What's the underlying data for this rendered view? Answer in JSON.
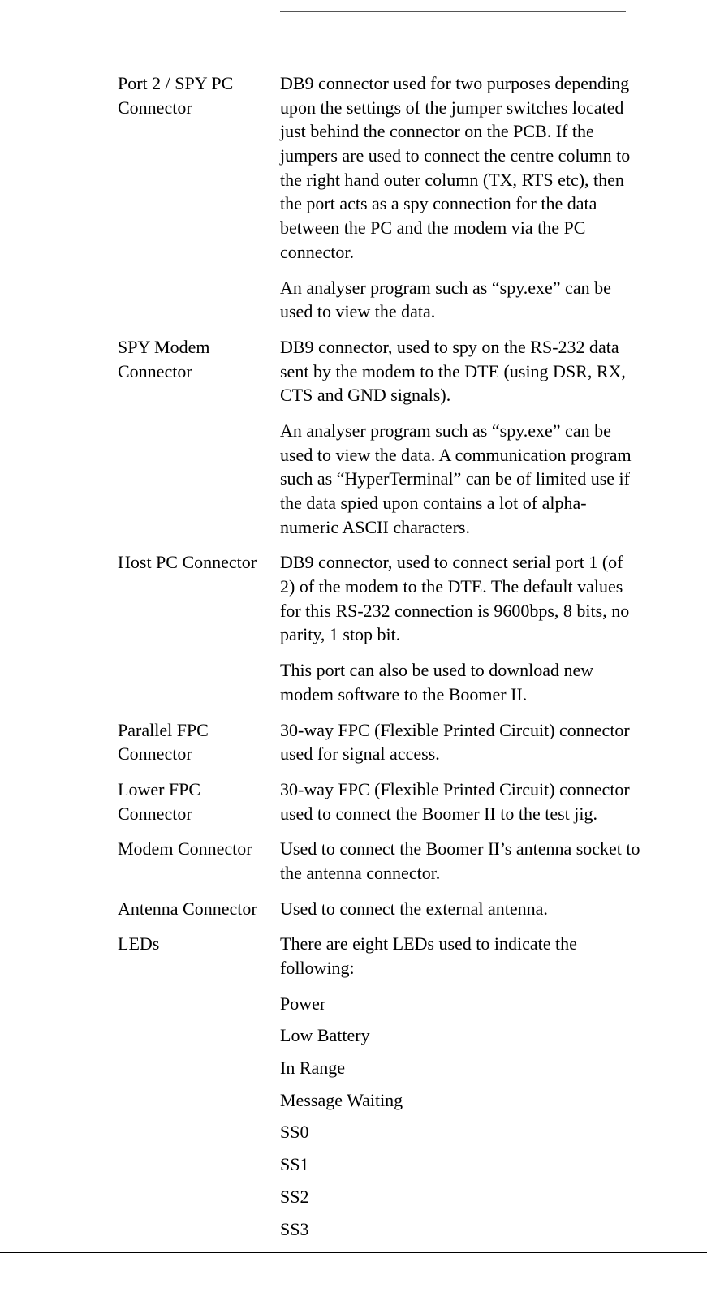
{
  "header": {
    "left_text": "",
    "right_text": ""
  },
  "defs": [
    {
      "term": "Port 2 / SPY PC Connector",
      "paras": [
        "DB9 connector used for two purposes depending upon the settings of the jumper switches located just behind the connector on the PCB. If the jumpers are used to connect the centre column to the right hand outer column (TX, RTS etc), then the port acts as a spy connection for the data between the PC and the modem via the PC connector.",
        "An analyser program such as “spy.exe” can be used to view the data."
      ]
    },
    {
      "term": "SPY Modem Connector",
      "paras": [
        "DB9 connector, used to spy on the RS-232 data sent by the modem to the DTE (using DSR, RX, CTS and GND signals).",
        "An analyser program such as “spy.exe” can be used to view the data. A communication program such as “HyperTerminal” can be of limited use if the data spied upon contains a lot of alpha-numeric ASCII characters."
      ]
    },
    {
      "term": "Host PC Connector",
      "paras": [
        "DB9 connector, used to connect serial port 1 (of 2) of the modem to the DTE. The default values for this RS-232 connection is 9600bps, 8 bits, no parity, 1 stop bit.",
        "This port can also be used to download new modem software to the Boomer II."
      ]
    },
    {
      "term": "Parallel FPC Connector",
      "paras": [
        "30-way FPC (Flexible Printed Circuit) connector used for signal access."
      ]
    },
    {
      "term": "Lower FPC Connector",
      "paras": [
        "30-way FPC (Flexible Printed Circuit) connector used to connect the Boomer II to the test jig."
      ]
    },
    {
      "term": "Modem Connector",
      "paras": [
        "Used to connect the Boomer II’s antenna socket to the antenna connector."
      ]
    },
    {
      "term": "Antenna Connector",
      "paras": [
        "Used to connect the external antenna."
      ]
    },
    {
      "term": "LEDs",
      "paras": [
        "There are eight LEDs used to indicate the following:"
      ],
      "list": [
        "Power",
        "Low Battery",
        "In Range",
        "Message Waiting",
        "SS0",
        "SS1",
        "SS2",
        "SS3"
      ]
    }
  ],
  "footer": {
    "left": "",
    "center": "",
    "right": ""
  }
}
